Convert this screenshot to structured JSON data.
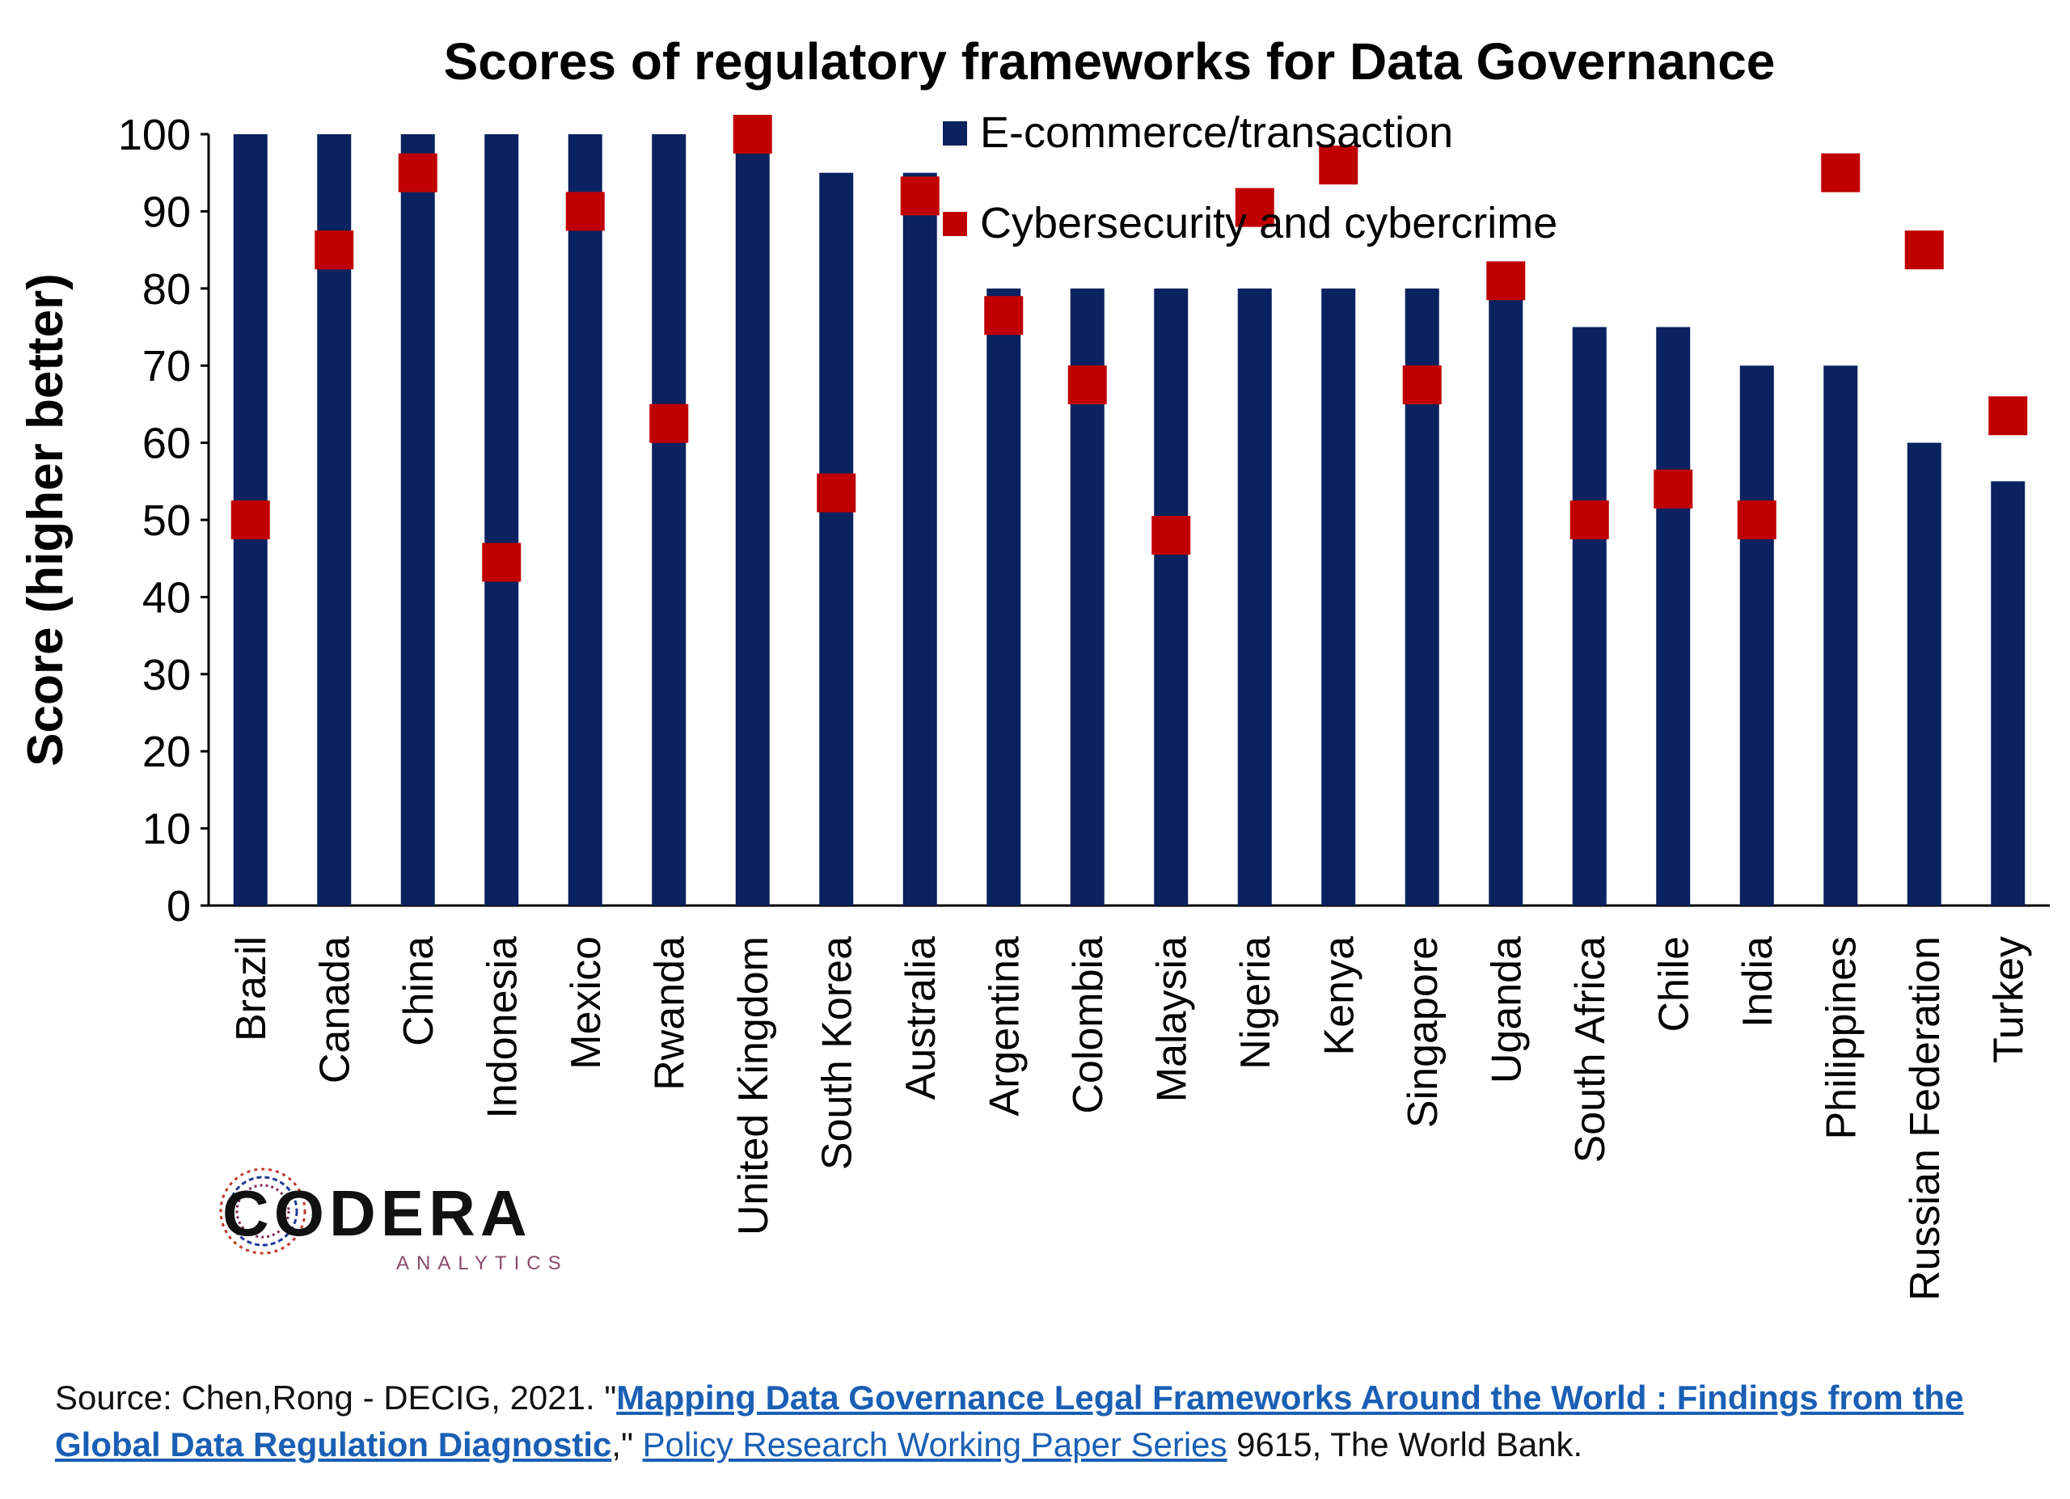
{
  "chart_data": {
    "type": "bar",
    "title": "Scores of regulatory frameworks for Data Governance",
    "ylabel": "Score (higher better)",
    "xlabel": "",
    "ylim": [
      0,
      100
    ],
    "yticks": [
      0,
      10,
      20,
      30,
      40,
      50,
      60,
      70,
      80,
      90,
      100
    ],
    "grid": false,
    "legend_position": "top-right",
    "categories": [
      "Brazil",
      "Canada",
      "China",
      "Indonesia",
      "Mexico",
      "Rwanda",
      "United Kingdom",
      "South Korea",
      "Australia",
      "Argentina",
      "Colombia",
      "Malaysia",
      "Nigeria",
      "Kenya",
      "Singapore",
      "Uganda",
      "South Africa",
      "Chile",
      "India",
      "Philippines",
      "Russian Federation",
      "Turkey"
    ],
    "series": [
      {
        "name": "E-commerce/transaction",
        "kind": "bar",
        "color": "#0b2260",
        "values": [
          100,
          100,
          100,
          100,
          100,
          100,
          100,
          95,
          95,
          80,
          80,
          80,
          80,
          80,
          80,
          80,
          75,
          75,
          70,
          70,
          60,
          55
        ]
      },
      {
        "name": "Cybersecurity and cybercrime",
        "kind": "marker",
        "color": "#c00000",
        "values": [
          50,
          85,
          95,
          44.5,
          90,
          62.5,
          100,
          53.5,
          92,
          76.5,
          67.5,
          48,
          90.5,
          96,
          67.5,
          81,
          50,
          54,
          50,
          95,
          85,
          63.5
        ]
      }
    ]
  },
  "logo": {
    "name": "CODERA",
    "subtitle": "ANALYTICS"
  },
  "source": {
    "prefix": "Source: Chen,Rong - DECIG, 2021. \"",
    "link_title": "Mapping Data Governance Legal Frameworks Around the World : Findings from the Global Data Regulation Diagnostic",
    "mid": ",\" ",
    "series_link": "Policy Research Working Paper Series",
    "suffix": " 9615, The World Bank."
  }
}
